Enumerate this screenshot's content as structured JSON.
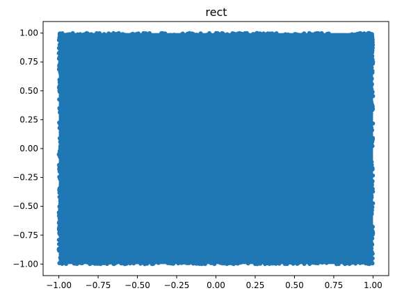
{
  "chart_data": {
    "type": "scatter",
    "title": "rect",
    "xlabel": "",
    "ylabel": "",
    "xlim": [
      -1.1,
      1.1
    ],
    "ylim": [
      -1.1,
      1.1
    ],
    "x_ticks": [
      -1.0,
      -0.75,
      -0.5,
      -0.25,
      0.0,
      0.25,
      0.5,
      0.75,
      1.0
    ],
    "y_ticks": [
      -1.0,
      -0.75,
      -0.5,
      -0.25,
      0.0,
      0.25,
      0.5,
      0.75,
      1.0
    ],
    "x_tick_labels": [
      "−1.00",
      "−0.75",
      "−0.50",
      "−0.25",
      "0.00",
      "0.25",
      "0.50",
      "0.75",
      "1.00"
    ],
    "y_tick_labels": [
      "−1.00",
      "−0.75",
      "−0.50",
      "−0.25",
      "0.00",
      "0.25",
      "0.50",
      "0.75",
      "1.00"
    ],
    "grid": false,
    "legend": "none",
    "series": [
      {
        "color": "#1f77b4",
        "distribution": "uniform",
        "x_range": [
          -1.0,
          1.0
        ],
        "y_range": [
          -1.0,
          1.0
        ]
      }
    ]
  }
}
